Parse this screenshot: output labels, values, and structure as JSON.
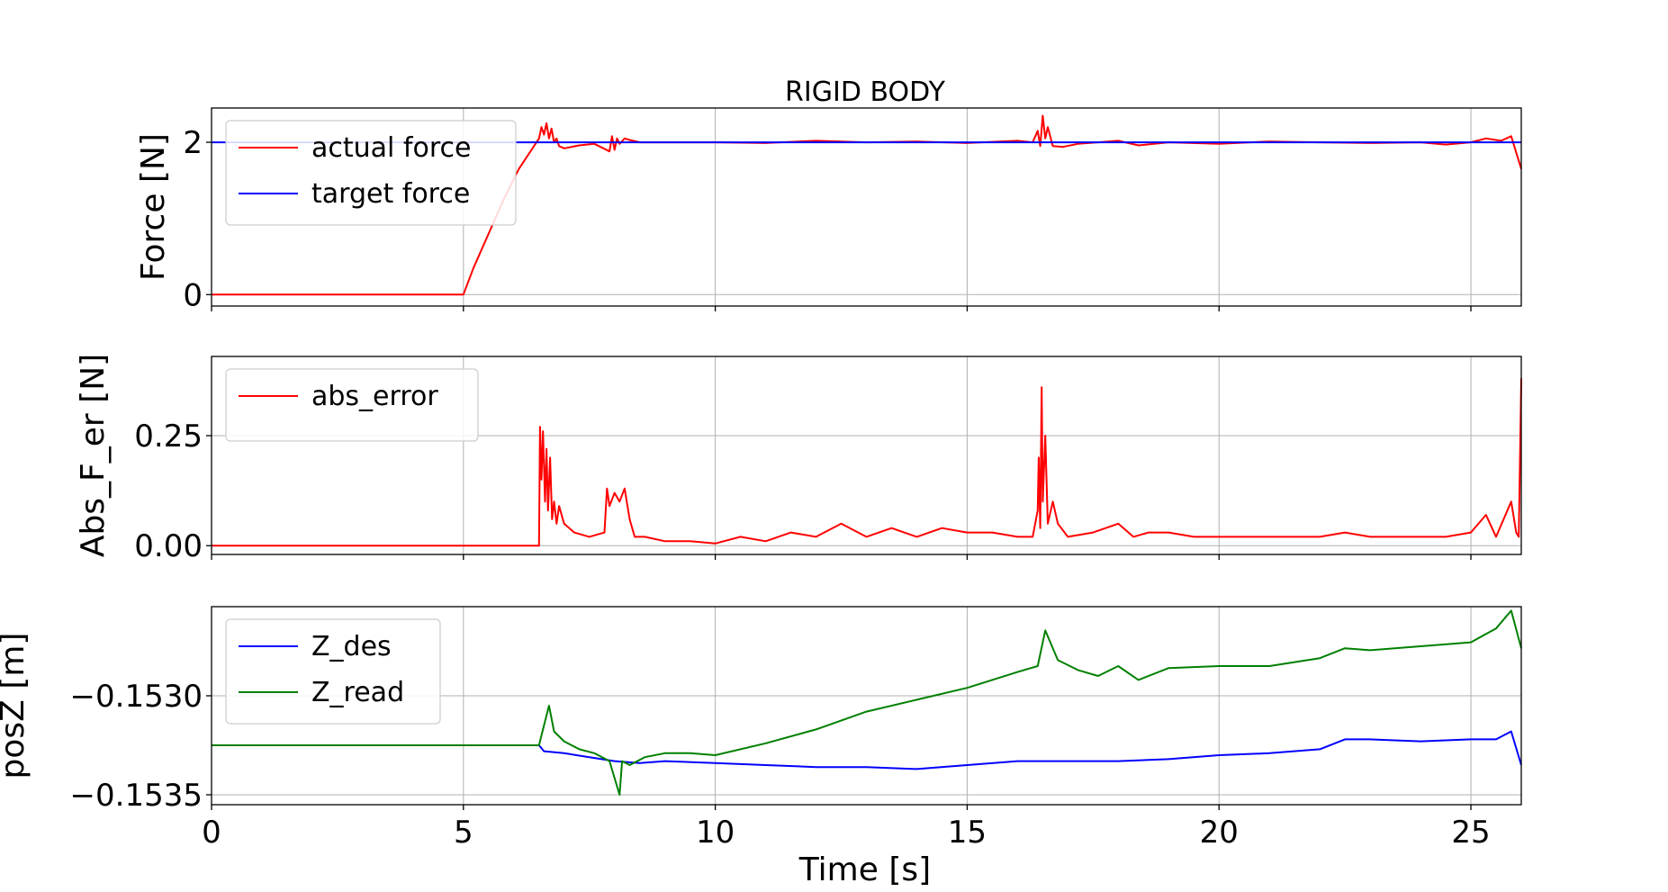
{
  "chart_data": [
    {
      "type": "line",
      "title": "RIGID BODY",
      "xlabel": "",
      "ylabel": "Force [N]",
      "xlim": [
        0,
        26
      ],
      "ylim": [
        -0.15,
        2.45
      ],
      "xticks": [
        0,
        5,
        10,
        15,
        20,
        25
      ],
      "yticks": [
        0,
        2
      ],
      "ytick_labels": [
        "0",
        "2"
      ],
      "grid": true,
      "legend": "top-left",
      "series": [
        {
          "name": "actual force",
          "color": "#ff0000",
          "x": [
            0,
            5.0,
            5.2,
            5.5,
            5.8,
            6.1,
            6.4,
            6.5,
            6.55,
            6.6,
            6.65,
            6.7,
            6.75,
            6.8,
            6.85,
            6.9,
            7.0,
            7.3,
            7.6,
            7.9,
            7.95,
            8.0,
            8.05,
            8.1,
            8.2,
            8.3,
            8.5,
            9.0,
            10.0,
            11.0,
            12.0,
            13.0,
            14.0,
            15.0,
            16.0,
            16.3,
            16.4,
            16.45,
            16.5,
            16.55,
            16.6,
            16.7,
            16.9,
            17.2,
            17.6,
            18.0,
            18.4,
            19.0,
            20.0,
            21.0,
            22.0,
            23.0,
            24.0,
            24.5,
            25.0,
            25.3,
            25.6,
            25.8,
            26.0
          ],
          "y": [
            0,
            0,
            0.35,
            0.8,
            1.25,
            1.65,
            1.95,
            2.05,
            2.2,
            2.1,
            2.25,
            2.05,
            2.18,
            2.0,
            2.05,
            1.95,
            1.92,
            1.96,
            1.98,
            1.88,
            2.08,
            1.9,
            2.05,
            1.98,
            2.05,
            2.03,
            2.0,
            2.0,
            2.0,
            1.99,
            2.02,
            2.0,
            2.01,
            1.99,
            2.02,
            2.0,
            2.15,
            1.95,
            2.35,
            2.05,
            2.2,
            1.95,
            1.94,
            1.98,
            2.0,
            2.02,
            1.96,
            2.0,
            1.98,
            2.01,
            2.0,
            1.99,
            2.0,
            1.97,
            2.0,
            2.05,
            2.02,
            2.08,
            1.65
          ]
        },
        {
          "name": "target force",
          "color": "#0000ff",
          "x": [
            0,
            26
          ],
          "y": [
            2,
            2
          ]
        }
      ]
    },
    {
      "type": "line",
      "title": "",
      "xlabel": "",
      "ylabel": "Abs_F_er [N]",
      "xlim": [
        0,
        26
      ],
      "ylim": [
        -0.02,
        0.43
      ],
      "xticks": [
        0,
        5,
        10,
        15,
        20,
        25
      ],
      "yticks": [
        0,
        0.25
      ],
      "ytick_labels": [
        "0.00",
        "0.25"
      ],
      "grid": true,
      "legend": "top-left",
      "series": [
        {
          "name": "abs_error",
          "color": "#ff0000",
          "x": [
            0,
            6.5,
            6.52,
            6.55,
            6.58,
            6.62,
            6.65,
            6.68,
            6.72,
            6.76,
            6.8,
            6.85,
            6.9,
            7.0,
            7.2,
            7.5,
            7.8,
            7.85,
            7.9,
            8.0,
            8.1,
            8.2,
            8.3,
            8.4,
            8.6,
            9.0,
            9.5,
            10.0,
            10.5,
            11.0,
            11.5,
            12.0,
            12.5,
            13.0,
            13.5,
            14.0,
            14.5,
            15.0,
            15.5,
            16.0,
            16.3,
            16.4,
            16.42,
            16.45,
            16.48,
            16.5,
            16.55,
            16.6,
            16.7,
            16.8,
            17.0,
            17.5,
            18.0,
            18.3,
            18.6,
            19.0,
            19.5,
            20.0,
            21.0,
            22.0,
            22.5,
            23.0,
            24.0,
            24.5,
            25.0,
            25.3,
            25.5,
            25.8,
            25.9,
            25.95,
            26.0
          ],
          "y": [
            0,
            0,
            0.27,
            0.15,
            0.26,
            0.1,
            0.22,
            0.08,
            0.2,
            0.06,
            0.1,
            0.05,
            0.09,
            0.05,
            0.03,
            0.02,
            0.03,
            0.13,
            0.09,
            0.12,
            0.1,
            0.13,
            0.06,
            0.02,
            0.02,
            0.01,
            0.01,
            0.005,
            0.02,
            0.01,
            0.03,
            0.02,
            0.05,
            0.02,
            0.04,
            0.02,
            0.04,
            0.03,
            0.03,
            0.02,
            0.02,
            0.08,
            0.2,
            0.04,
            0.36,
            0.1,
            0.25,
            0.05,
            0.1,
            0.05,
            0.02,
            0.03,
            0.05,
            0.02,
            0.03,
            0.03,
            0.02,
            0.02,
            0.02,
            0.02,
            0.03,
            0.02,
            0.02,
            0.02,
            0.03,
            0.07,
            0.02,
            0.1,
            0.03,
            0.02,
            0.38
          ]
        }
      ]
    },
    {
      "type": "line",
      "title": "",
      "xlabel": "Time [s]",
      "ylabel": "posZ [m]",
      "xlim": [
        0,
        26
      ],
      "ylim": [
        -0.15355,
        -0.15255
      ],
      "xticks": [
        0,
        5,
        10,
        15,
        20,
        25
      ],
      "xtick_labels": [
        "0",
        "5",
        "10",
        "15",
        "20",
        "25"
      ],
      "yticks": [
        -0.153,
        -0.1535
      ],
      "ytick_labels": [
        "−0.1530",
        "−0.1535"
      ],
      "grid": true,
      "legend": "top-left",
      "series": [
        {
          "name": "Z_des",
          "color": "#0000ff",
          "x": [
            0,
            6.5,
            6.6,
            7.0,
            7.5,
            8.0,
            8.5,
            9.0,
            10.0,
            11.0,
            12.0,
            13.0,
            14.0,
            15.0,
            16.0,
            17.0,
            18.0,
            19.0,
            20.0,
            21.0,
            22.0,
            22.5,
            23.0,
            24.0,
            25.0,
            25.5,
            25.8,
            26.0
          ],
          "y": [
            -0.15325,
            -0.15325,
            -0.15328,
            -0.15329,
            -0.15331,
            -0.15333,
            -0.15334,
            -0.15333,
            -0.15334,
            -0.15335,
            -0.15336,
            -0.15336,
            -0.15337,
            -0.15335,
            -0.15333,
            -0.15333,
            -0.15333,
            -0.15332,
            -0.1533,
            -0.15329,
            -0.15327,
            -0.15322,
            -0.15322,
            -0.15323,
            -0.15322,
            -0.15322,
            -0.15318,
            -0.15335
          ]
        },
        {
          "name": "Z_read",
          "color": "#008000",
          "x": [
            0,
            6.5,
            6.6,
            6.7,
            6.8,
            7.0,
            7.3,
            7.6,
            7.9,
            8.1,
            8.15,
            8.3,
            8.6,
            9.0,
            9.5,
            10.0,
            11.0,
            12.0,
            13.0,
            14.0,
            15.0,
            16.0,
            16.4,
            16.55,
            16.8,
            17.2,
            17.6,
            18.0,
            18.4,
            19.0,
            20.0,
            21.0,
            22.0,
            22.5,
            23.0,
            24.0,
            25.0,
            25.5,
            25.8,
            26.0
          ],
          "y": [
            -0.15325,
            -0.15325,
            -0.15315,
            -0.15305,
            -0.15318,
            -0.15323,
            -0.15327,
            -0.15329,
            -0.15333,
            -0.1535,
            -0.15333,
            -0.15335,
            -0.15331,
            -0.15329,
            -0.15329,
            -0.1533,
            -0.15324,
            -0.15317,
            -0.15308,
            -0.15302,
            -0.15296,
            -0.15288,
            -0.15285,
            -0.15267,
            -0.15282,
            -0.15287,
            -0.1529,
            -0.15285,
            -0.15292,
            -0.15286,
            -0.15285,
            -0.15285,
            -0.15281,
            -0.15276,
            -0.15277,
            -0.15275,
            -0.15273,
            -0.15266,
            -0.15257,
            -0.15276
          ]
        }
      ]
    }
  ]
}
